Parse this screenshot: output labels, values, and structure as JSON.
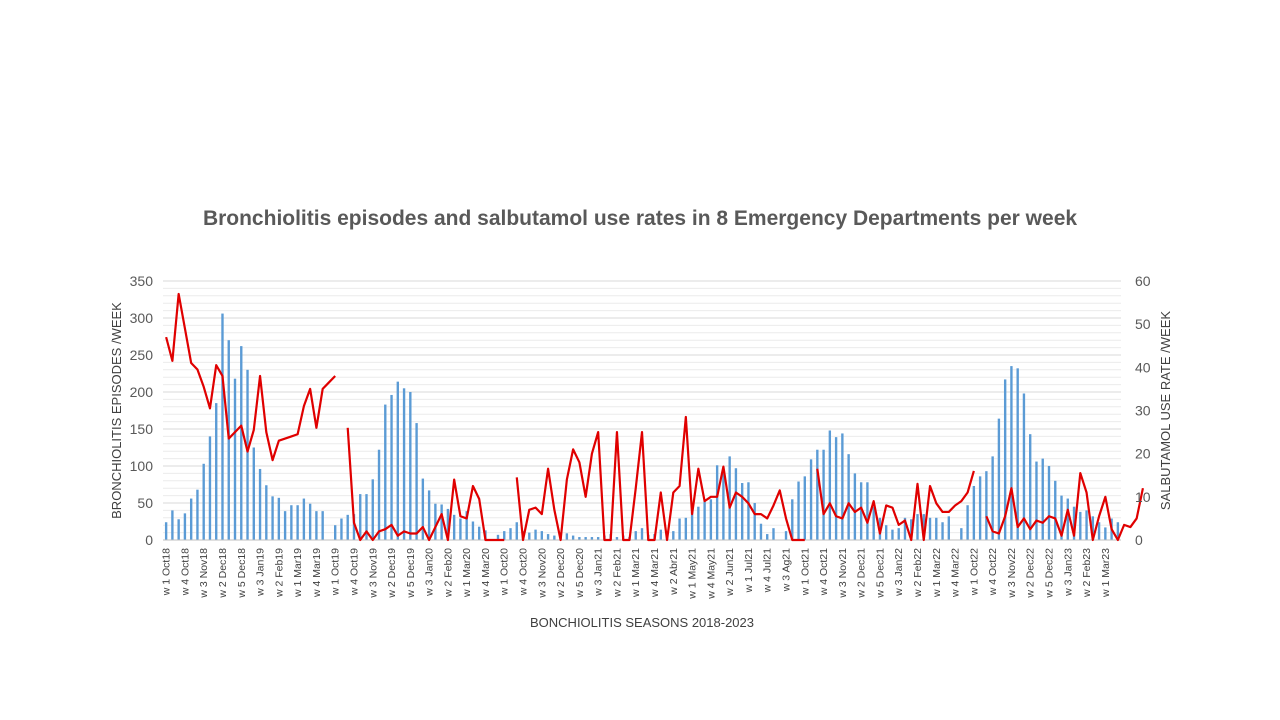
{
  "chart_data": {
    "type": "bar",
    "title": "Bronchiolitis episodes and salbutamol use rates in 8 Emergency Departments per week",
    "xlabel": "BONCHIOLITIS SEASONS 2018-2023",
    "ylabel": "BRONCHIOLITIS EPISODES /WEEK",
    "y2label": "SALBUTAMOL USE RATE /WEEK",
    "ylim": [
      0,
      350
    ],
    "y2lim": [
      0,
      60
    ],
    "yticks": [
      0,
      50,
      100,
      150,
      200,
      250,
      300,
      350
    ],
    "y2ticks": [
      0,
      10,
      20,
      30,
      40,
      50,
      60
    ],
    "grid": true,
    "x_tick_labels": [
      "w 1 Oct18",
      "w 4 Oct18",
      "w 3 Nov18",
      "w 2 Dec18",
      "w 5 Dec18",
      "w 3 Jan19",
      "w 2 Feb19",
      "w 1 Mar19",
      "w 4 Mar19",
      "w 1 Oct19",
      "w 4 Oct19",
      "w 3 Nov19",
      "w 2 Dec19",
      "w 5 Dec19",
      "w 3 Jan20",
      "w 2 Feb20",
      "w 1 Mar20",
      "w 4 Mar20",
      "w 1 Oct20",
      "w 4 Oct20",
      "w 3 Nov20",
      "w 2 Dec20",
      "w 5 Dec20",
      "w 3 Jan21",
      "w 2 Feb21",
      "w 1 Mar21",
      "w 4 Mar21",
      "w 2 Abr21",
      "w 1 May21",
      "w 4 May21",
      "w 2 Jun21",
      "w 1 Jul21",
      "w 4 Jul21",
      "w 3 Ag21",
      "w 1 Oct21",
      "w 4 Oct21",
      "w 3 Nov21",
      "w 2 Dec21",
      "w 5 Dec21",
      "w 3 Jan22",
      "w 2 Feb22",
      "w 1 Mar22",
      "w 4 Mar22",
      "w 1 Oct22",
      "w 4 Oct22",
      "w 3 Nov22",
      "w 2 Dec22",
      "w 5 Dec22",
      "w 3 Jan23",
      "w 2 Feb23",
      "w 1 Mar23",
      "w 4 Mar23"
    ],
    "series": [
      {
        "name": "Bronchiolitis episodes",
        "kind": "bar",
        "axis": "left",
        "color": "#5B9BD5",
        "values": [
          24,
          40,
          28,
          36,
          56,
          68,
          103,
          140,
          185,
          306,
          270,
          218,
          262,
          230,
          125,
          96,
          74,
          59,
          57,
          39,
          47,
          47,
          56,
          49,
          39,
          39,
          null,
          20,
          29,
          34,
          35,
          62,
          62,
          82,
          122,
          183,
          196,
          214,
          205,
          200,
          158,
          83,
          67,
          49,
          48,
          42,
          34,
          29,
          39,
          25,
          18,
          13,
          null,
          7,
          12,
          16,
          24,
          12,
          10,
          14,
          12,
          8,
          6,
          9,
          9,
          6,
          4,
          4,
          4,
          4,
          6,
          8,
          4,
          6,
          4,
          12,
          16,
          7,
          8,
          14,
          7,
          12,
          29,
          30,
          38,
          45,
          52,
          55,
          101,
          93,
          113,
          97,
          77,
          78,
          50,
          22,
          8,
          16,
          null,
          12,
          55,
          79,
          86,
          109,
          122,
          122,
          148,
          139,
          144,
          116,
          90,
          78,
          78,
          45,
          30,
          20,
          14,
          16,
          30,
          28,
          35,
          35,
          30,
          30,
          24,
          32,
          null,
          16,
          47,
          73,
          86,
          93,
          113,
          164,
          217,
          235,
          232,
          198,
          143,
          106,
          110,
          100,
          80,
          60,
          56,
          45,
          38,
          40,
          32,
          24,
          17,
          29,
          24
        ]
      },
      {
        "name": "Salbutamol use rate",
        "kind": "line",
        "axis": "right",
        "color": "#E00000",
        "values": [
          47,
          41.5,
          57,
          49,
          41,
          39.5,
          35.5,
          30.5,
          40.5,
          38,
          23.5,
          25,
          26.5,
          20.5,
          25.5,
          38,
          25,
          18.5,
          23,
          23.5,
          24,
          24.5,
          31,
          35,
          26,
          35,
          36.5,
          38,
          null,
          26,
          4,
          0,
          2,
          0,
          2,
          2.5,
          3.5,
          1,
          2,
          1.5,
          1.5,
          3,
          0,
          3,
          6,
          0,
          14,
          5.5,
          5,
          12.5,
          9.5,
          0,
          0,
          0,
          0,
          null,
          14.5,
          0,
          7,
          7.5,
          6,
          16.5,
          7,
          0,
          14,
          21,
          18,
          10,
          20,
          25,
          0,
          0,
          25,
          0,
          0,
          12,
          25,
          0,
          0,
          11,
          0,
          11,
          12.5,
          28.5,
          6,
          16.5,
          9,
          10,
          10,
          17,
          7.5,
          11,
          10,
          8.5,
          6,
          6,
          5,
          8,
          11.5,
          5,
          0,
          0,
          0,
          null,
          16.5,
          6,
          8.5,
          5.5,
          5,
          8.5,
          6.5,
          7.5,
          4,
          9,
          1.5,
          8,
          7.5,
          3.5,
          4.5,
          0,
          13,
          0,
          12.5,
          8.5,
          6.5,
          6.5,
          8,
          9,
          11,
          16,
          null,
          5.5,
          2,
          1.5,
          5.5,
          12,
          3,
          5,
          2.5,
          4.5,
          4,
          5.5,
          5,
          1,
          7,
          1,
          15.5,
          11,
          0,
          5.5,
          10,
          2.5,
          0,
          3.5,
          3,
          5,
          12
        ]
      }
    ]
  }
}
